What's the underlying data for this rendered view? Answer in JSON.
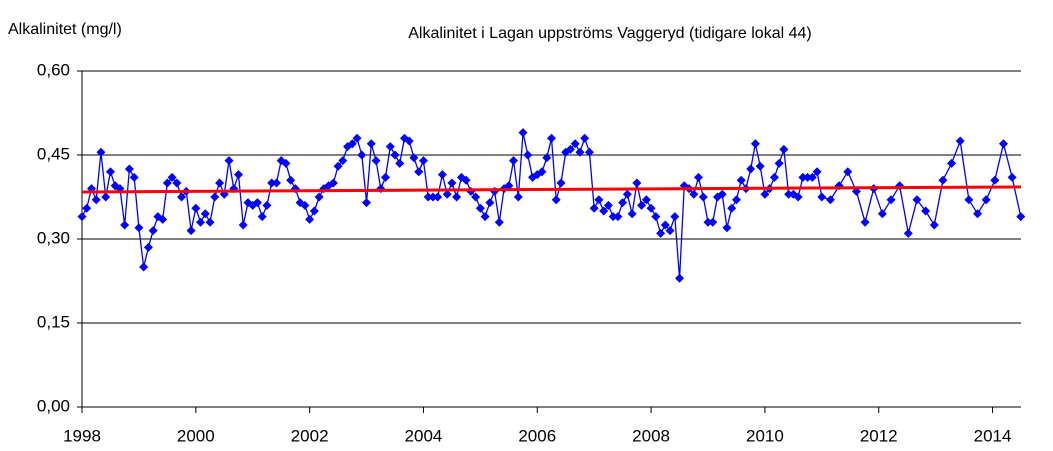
{
  "chart_data": {
    "type": "line",
    "title": "Alkalinitet i Lagan uppströms Vaggeryd (tidigare lokal 44)",
    "y_label": "Alkalinitet (mg/l)",
    "xlim": [
      1998,
      2014.5
    ],
    "xticks": [
      1998,
      2000,
      2002,
      2004,
      2006,
      2008,
      2010,
      2012,
      2014
    ],
    "ylim": [
      0,
      0.6
    ],
    "yticks": [
      {
        "value": 0,
        "label": "0,00"
      },
      {
        "value": 0.15,
        "label": "0,15"
      },
      {
        "value": 0.3,
        "label": "0,30"
      },
      {
        "value": 0.45,
        "label": "0,45"
      },
      {
        "value": 0.6,
        "label": "0,60"
      }
    ],
    "grid": true,
    "series": [
      {
        "color": "#0000ff",
        "markers": true,
        "x": [
          1998,
          1998.083,
          1998.167,
          1998.25,
          1998.333,
          1998.417,
          1998.5,
          1998.583,
          1998.667,
          1998.75,
          1998.833,
          1998.917,
          1999,
          1999.083,
          1999.167,
          1999.25,
          1999.333,
          1999.417,
          1999.5,
          1999.583,
          1999.667,
          1999.75,
          1999.833,
          1999.917,
          2000,
          2000.083,
          2000.167,
          2000.25,
          2000.333,
          2000.417,
          2000.5,
          2000.583,
          2000.667,
          2000.75,
          2000.833,
          2000.917,
          2001,
          2001.083,
          2001.167,
          2001.25,
          2001.333,
          2001.417,
          2001.5,
          2001.583,
          2001.667,
          2001.75,
          2001.833,
          2001.917,
          2002,
          2002.083,
          2002.167,
          2002.25,
          2002.333,
          2002.417,
          2002.5,
          2002.583,
          2002.667,
          2002.75,
          2002.833,
          2002.917,
          2003,
          2003.083,
          2003.167,
          2003.25,
          2003.333,
          2003.417,
          2003.5,
          2003.583,
          2003.667,
          2003.75,
          2003.833,
          2003.917,
          2004,
          2004.083,
          2004.167,
          2004.25,
          2004.333,
          2004.417,
          2004.5,
          2004.583,
          2004.667,
          2004.75,
          2004.833,
          2004.917,
          2005,
          2005.083,
          2005.167,
          2005.25,
          2005.333,
          2005.417,
          2005.5,
          2005.583,
          2005.667,
          2005.75,
          2005.833,
          2005.917,
          2006,
          2006.083,
          2006.167,
          2006.25,
          2006.333,
          2006.417,
          2006.5,
          2006.583,
          2006.667,
          2006.75,
          2006.833,
          2006.917,
          2007,
          2007.083,
          2007.167,
          2007.25,
          2007.333,
          2007.417,
          2007.5,
          2007.583,
          2007.667,
          2007.75,
          2007.833,
          2007.917,
          2008,
          2008.083,
          2008.167,
          2008.25,
          2008.333,
          2008.417,
          2008.5,
          2008.583,
          2008.667,
          2008.75,
          2008.833,
          2008.917,
          2009,
          2009.083,
          2009.167,
          2009.25,
          2009.333,
          2009.417,
          2009.5,
          2009.583,
          2009.667,
          2009.75,
          2009.833,
          2009.917,
          2010,
          2010.083,
          2010.167,
          2010.25,
          2010.333,
          2010.417,
          2010.5,
          2010.583,
          2010.667,
          2010.75,
          2010.833,
          2010.917,
          2011,
          2011.152,
          2011.304,
          2011.456,
          2011.608,
          2011.76,
          2011.912,
          2012.064,
          2012.216,
          2012.368,
          2012.52,
          2012.672,
          2012.824,
          2012.976,
          2013.128,
          2013.28,
          2013.432,
          2013.584,
          2013.736,
          2013.888,
          2014.04,
          2014.192,
          2014.344,
          2014.496
        ],
        "values": [
          0.34,
          0.355,
          0.39,
          0.37,
          0.455,
          0.375,
          0.42,
          0.395,
          0.39,
          0.325,
          0.425,
          0.41,
          0.32,
          0.25,
          0.285,
          0.315,
          0.34,
          0.335,
          0.4,
          0.41,
          0.4,
          0.375,
          0.385,
          0.315,
          0.355,
          0.33,
          0.345,
          0.33,
          0.375,
          0.4,
          0.38,
          0.44,
          0.39,
          0.415,
          0.325,
          0.365,
          0.36,
          0.365,
          0.34,
          0.36,
          0.4,
          0.4,
          0.44,
          0.435,
          0.405,
          0.39,
          0.365,
          0.36,
          0.335,
          0.35,
          0.375,
          0.39,
          0.395,
          0.4,
          0.43,
          0.44,
          0.465,
          0.47,
          0.48,
          0.45,
          0.365,
          0.47,
          0.44,
          0.39,
          0.41,
          0.465,
          0.45,
          0.435,
          0.48,
          0.475,
          0.445,
          0.42,
          0.44,
          0.375,
          0.375,
          0.375,
          0.415,
          0.38,
          0.4,
          0.375,
          0.41,
          0.405,
          0.385,
          0.375,
          0.355,
          0.34,
          0.365,
          0.385,
          0.33,
          0.39,
          0.395,
          0.44,
          0.375,
          0.49,
          0.45,
          0.41,
          0.415,
          0.42,
          0.445,
          0.48,
          0.37,
          0.4,
          0.455,
          0.46,
          0.47,
          0.455,
          0.48,
          0.455,
          0.355,
          0.37,
          0.35,
          0.36,
          0.34,
          0.34,
          0.365,
          0.38,
          0.345,
          0.4,
          0.36,
          0.37,
          0.355,
          0.34,
          0.31,
          0.325,
          0.315,
          0.34,
          0.23,
          0.395,
          0.39,
          0.38,
          0.41,
          0.375,
          0.33,
          0.33,
          0.375,
          0.38,
          0.32,
          0.355,
          0.37,
          0.405,
          0.39,
          0.425,
          0.47,
          0.43,
          0.38,
          0.39,
          0.41,
          0.435,
          0.46,
          0.38,
          0.38,
          0.375,
          0.41,
          0.41,
          0.41,
          0.42,
          0.375,
          0.37,
          0.395,
          0.42,
          0.385,
          0.33,
          0.39,
          0.345,
          0.37,
          0.395,
          0.31,
          0.37,
          0.35,
          0.325,
          0.405,
          0.435,
          0.475,
          0.37,
          0.345,
          0.37,
          0.405,
          0.47,
          0.41,
          0.34
        ]
      },
      {
        "color": "#ff0000",
        "markers": false,
        "x": [
          1998,
          2014.5
        ],
        "values": [
          0.384,
          0.393
        ]
      }
    ]
  }
}
